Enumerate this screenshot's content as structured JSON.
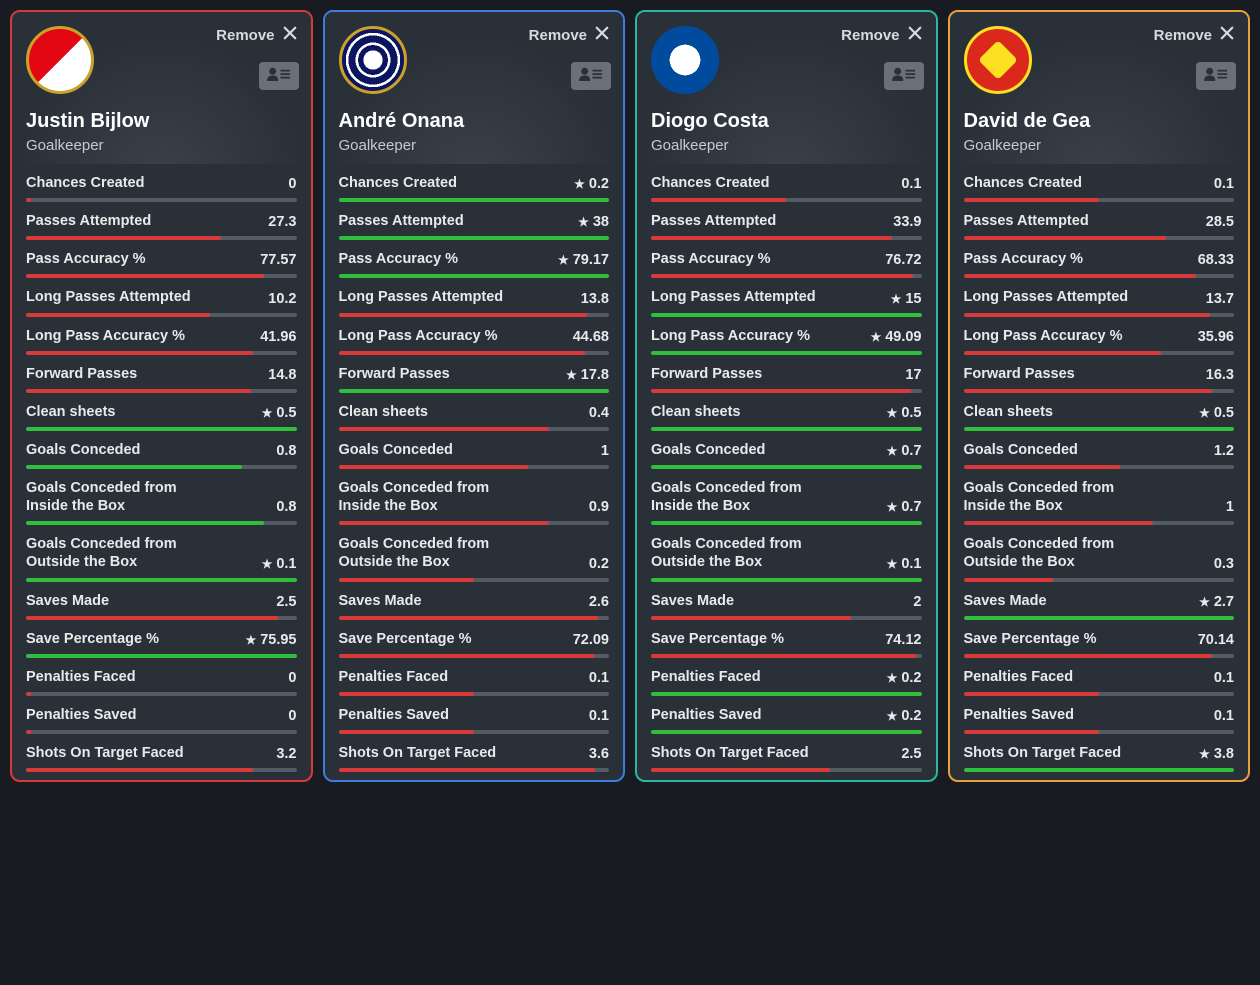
{
  "ui": {
    "remove_label": "Remove"
  },
  "colors": {
    "bar_green": "#2fbf3a",
    "bar_red": "#d83a3a",
    "bar_track": "#555b63"
  },
  "stat_labels": [
    "Chances Created",
    "Passes Attempted",
    "Pass Accuracy %",
    "Long Passes Attempted",
    "Long Pass Accuracy %",
    "Forward Passes",
    "Clean sheets",
    "Goals Conceded",
    "Goals Conceded from Inside the Box",
    "Goals Conceded from Outside the Box",
    "Saves Made",
    "Save Percentage %",
    "Penalties Faced",
    "Penalties Saved",
    "Shots On Target Faced"
  ],
  "players": [
    {
      "name": "Justin Bijlow",
      "position": "Goalkeeper",
      "club": "Feyenoord",
      "border_color": "#d83a3a",
      "badge_class": "badge-feyenoord",
      "stats": [
        {
          "value": "0",
          "star": false,
          "pct": 2,
          "color": "red"
        },
        {
          "value": "27.3",
          "star": false,
          "pct": 72,
          "color": "red"
        },
        {
          "value": "77.57",
          "star": false,
          "pct": 88,
          "color": "red"
        },
        {
          "value": "10.2",
          "star": false,
          "pct": 68,
          "color": "red"
        },
        {
          "value": "41.96",
          "star": false,
          "pct": 84,
          "color": "red"
        },
        {
          "value": "14.8",
          "star": false,
          "pct": 83,
          "color": "red"
        },
        {
          "value": "0.5",
          "star": true,
          "pct": 100,
          "color": "green"
        },
        {
          "value": "0.8",
          "star": false,
          "pct": 80,
          "color": "green"
        },
        {
          "value": "0.8",
          "star": false,
          "pct": 88,
          "color": "green"
        },
        {
          "value": "0.1",
          "star": true,
          "pct": 100,
          "color": "green"
        },
        {
          "value": "2.5",
          "star": false,
          "pct": 93,
          "color": "red"
        },
        {
          "value": "75.95",
          "star": true,
          "pct": 100,
          "color": "green"
        },
        {
          "value": "0",
          "star": false,
          "pct": 2,
          "color": "red"
        },
        {
          "value": "0",
          "star": false,
          "pct": 2,
          "color": "red"
        },
        {
          "value": "3.2",
          "star": false,
          "pct": 84,
          "color": "red"
        }
      ]
    },
    {
      "name": "André Onana",
      "position": "Goalkeeper",
      "club": "Inter",
      "border_color": "#3b7dd8",
      "badge_class": "badge-inter",
      "stats": [
        {
          "value": "0.2",
          "star": true,
          "pct": 100,
          "color": "green"
        },
        {
          "value": "38",
          "star": true,
          "pct": 100,
          "color": "green"
        },
        {
          "value": "79.17",
          "star": true,
          "pct": 100,
          "color": "green"
        },
        {
          "value": "13.8",
          "star": false,
          "pct": 92,
          "color": "red"
        },
        {
          "value": "44.68",
          "star": false,
          "pct": 91,
          "color": "red"
        },
        {
          "value": "17.8",
          "star": true,
          "pct": 100,
          "color": "green"
        },
        {
          "value": "0.4",
          "star": false,
          "pct": 78,
          "color": "red"
        },
        {
          "value": "1",
          "star": false,
          "pct": 70,
          "color": "red"
        },
        {
          "value": "0.9",
          "star": false,
          "pct": 78,
          "color": "red"
        },
        {
          "value": "0.2",
          "star": false,
          "pct": 50,
          "color": "red"
        },
        {
          "value": "2.6",
          "star": false,
          "pct": 96,
          "color": "red"
        },
        {
          "value": "72.09",
          "star": false,
          "pct": 95,
          "color": "red"
        },
        {
          "value": "0.1",
          "star": false,
          "pct": 50,
          "color": "red"
        },
        {
          "value": "0.1",
          "star": false,
          "pct": 50,
          "color": "red"
        },
        {
          "value": "3.6",
          "star": false,
          "pct": 95,
          "color": "red"
        }
      ]
    },
    {
      "name": "Diogo Costa",
      "position": "Goalkeeper",
      "club": "FC Porto",
      "border_color": "#2cb5a0",
      "badge_class": "badge-porto",
      "stats": [
        {
          "value": "0.1",
          "star": false,
          "pct": 50,
          "color": "red"
        },
        {
          "value": "33.9",
          "star": false,
          "pct": 89,
          "color": "red"
        },
        {
          "value": "76.72",
          "star": false,
          "pct": 97,
          "color": "red"
        },
        {
          "value": "15",
          "star": true,
          "pct": 100,
          "color": "green"
        },
        {
          "value": "49.09",
          "star": true,
          "pct": 100,
          "color": "green"
        },
        {
          "value": "17",
          "star": false,
          "pct": 96,
          "color": "red"
        },
        {
          "value": "0.5",
          "star": true,
          "pct": 100,
          "color": "green"
        },
        {
          "value": "0.7",
          "star": true,
          "pct": 100,
          "color": "green"
        },
        {
          "value": "0.7",
          "star": true,
          "pct": 100,
          "color": "green"
        },
        {
          "value": "0.1",
          "star": true,
          "pct": 100,
          "color": "green"
        },
        {
          "value": "2",
          "star": false,
          "pct": 74,
          "color": "red"
        },
        {
          "value": "74.12",
          "star": false,
          "pct": 98,
          "color": "red"
        },
        {
          "value": "0.2",
          "star": true,
          "pct": 100,
          "color": "green"
        },
        {
          "value": "0.2",
          "star": true,
          "pct": 100,
          "color": "green"
        },
        {
          "value": "2.5",
          "star": false,
          "pct": 66,
          "color": "red"
        }
      ]
    },
    {
      "name": "David de Gea",
      "position": "Goalkeeper",
      "club": "Manchester United",
      "border_color": "#e9a23b",
      "badge_class": "badge-manutd",
      "stats": [
        {
          "value": "0.1",
          "star": false,
          "pct": 50,
          "color": "red"
        },
        {
          "value": "28.5",
          "star": false,
          "pct": 75,
          "color": "red"
        },
        {
          "value": "68.33",
          "star": false,
          "pct": 86,
          "color": "red"
        },
        {
          "value": "13.7",
          "star": false,
          "pct": 91,
          "color": "red"
        },
        {
          "value": "35.96",
          "star": false,
          "pct": 73,
          "color": "red"
        },
        {
          "value": "16.3",
          "star": false,
          "pct": 92,
          "color": "red"
        },
        {
          "value": "0.5",
          "star": true,
          "pct": 100,
          "color": "green"
        },
        {
          "value": "1.2",
          "star": false,
          "pct": 58,
          "color": "red"
        },
        {
          "value": "1",
          "star": false,
          "pct": 70,
          "color": "red"
        },
        {
          "value": "0.3",
          "star": false,
          "pct": 33,
          "color": "red"
        },
        {
          "value": "2.7",
          "star": true,
          "pct": 100,
          "color": "green"
        },
        {
          "value": "70.14",
          "star": false,
          "pct": 92,
          "color": "red"
        },
        {
          "value": "0.1",
          "star": false,
          "pct": 50,
          "color": "red"
        },
        {
          "value": "0.1",
          "star": false,
          "pct": 50,
          "color": "red"
        },
        {
          "value": "3.8",
          "star": true,
          "pct": 100,
          "color": "green"
        }
      ]
    }
  ]
}
